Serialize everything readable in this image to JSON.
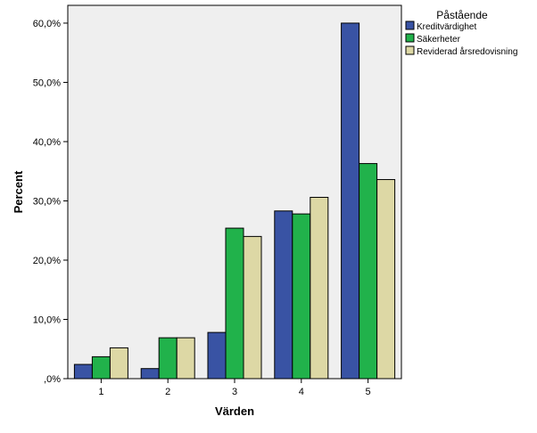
{
  "chart_data": {
    "type": "bar",
    "xlabel": "Värden",
    "ylabel": "Percent",
    "categories": [
      "1",
      "2",
      "3",
      "4",
      "5"
    ],
    "ylim": [
      0,
      63
    ],
    "yticks": [
      0,
      10,
      20,
      30,
      40,
      50,
      60
    ],
    "ytick_labels": [
      ",0%",
      "10,0%",
      "20,0%",
      "30,0%",
      "40,0%",
      "50,0%",
      "60,0%"
    ],
    "legend": {
      "title": "Påstående",
      "placement": "right"
    },
    "grid": false,
    "series": [
      {
        "name": "Kreditvärdighet",
        "color": "#3953a4",
        "values": [
          2.4,
          1.7,
          7.8,
          28.3,
          60.0
        ]
      },
      {
        "name": "Säkerheter",
        "color": "#21b24b",
        "values": [
          3.7,
          6.9,
          25.4,
          27.8,
          36.3
        ]
      },
      {
        "name": "Reviderad årsredovisning",
        "color": "#ddd8a5",
        "values": [
          5.2,
          6.9,
          24.0,
          30.6,
          33.6
        ]
      }
    ],
    "plot_background": "#efefef"
  }
}
